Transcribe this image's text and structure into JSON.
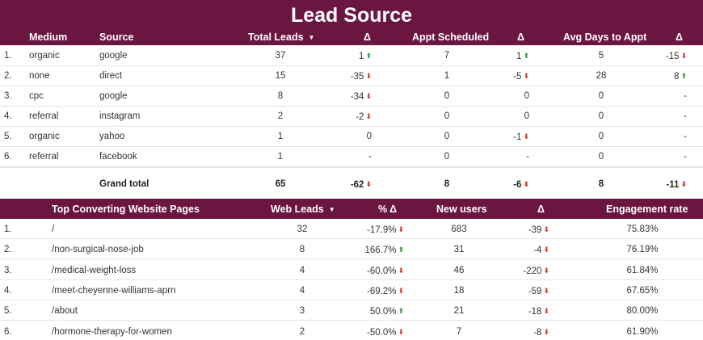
{
  "title": "Lead Source",
  "table1": {
    "headers": {
      "medium": "Medium",
      "source": "Source",
      "total_leads": "Total Leads",
      "delta1": "Δ",
      "appt": "Appt Scheduled",
      "delta2": "Δ",
      "avg_days": "Avg Days to Appt",
      "delta3": "Δ"
    },
    "rows": [
      {
        "n": "1.",
        "medium": "organic",
        "source": "google",
        "leads": "37",
        "d1": "1",
        "d1_dir": "up",
        "appt": "7",
        "d2": "1",
        "d2_dir": "up",
        "avg": "5",
        "d3": "-15",
        "d3_dir": "down"
      },
      {
        "n": "2.",
        "medium": "none",
        "source": "direct",
        "leads": "15",
        "d1": "-35",
        "d1_dir": "down",
        "appt": "1",
        "d2": "-5",
        "d2_dir": "down",
        "avg": "28",
        "d3": "8",
        "d3_dir": "up"
      },
      {
        "n": "3.",
        "medium": "cpc",
        "source": "google",
        "leads": "8",
        "d1": "-34",
        "d1_dir": "down",
        "appt": "0",
        "d2": "0",
        "d2_dir": "",
        "avg": "0",
        "d3": "-",
        "d3_dir": ""
      },
      {
        "n": "4.",
        "medium": "referral",
        "source": "instagram",
        "leads": "2",
        "d1": "-2",
        "d1_dir": "down",
        "appt": "0",
        "d2": "0",
        "d2_dir": "",
        "avg": "0",
        "d3": "-",
        "d3_dir": ""
      },
      {
        "n": "5.",
        "medium": "organic",
        "source": "yahoo",
        "leads": "1",
        "d1": "0",
        "d1_dir": "",
        "appt": "0",
        "d2": "-1",
        "d2_dir": "down",
        "avg": "0",
        "d3": "-",
        "d3_dir": ""
      },
      {
        "n": "6.",
        "medium": "referral",
        "source": "facebook",
        "leads": "1",
        "d1": "-",
        "d1_dir": "",
        "appt": "0",
        "d2": "-",
        "d2_dir": "",
        "avg": "0",
        "d3": "-",
        "d3_dir": ""
      }
    ],
    "total": {
      "label": "Grand total",
      "leads": "65",
      "d1": "-62",
      "appt": "8",
      "d2": "-6",
      "avg": "8",
      "d3": "-11"
    }
  },
  "table2": {
    "headers": {
      "page": "Top Converting Website Pages",
      "web_leads": "Web Leads",
      "pct_delta": "% Δ",
      "new_users": "New users",
      "delta": "Δ",
      "engagement": "Engagement rate"
    },
    "rows": [
      {
        "n": "1.",
        "page": "/",
        "leads": "32",
        "pct": "-17.9%",
        "pct_dir": "down",
        "users": "683",
        "d": "-39",
        "d_dir": "down",
        "eng": "75.83%"
      },
      {
        "n": "2.",
        "page": "/non-surgical-nose-job",
        "leads": "8",
        "pct": "166.7%",
        "pct_dir": "up",
        "users": "31",
        "d": "-4",
        "d_dir": "down",
        "eng": "76.19%"
      },
      {
        "n": "3.",
        "page": "/medical-weight-loss",
        "leads": "4",
        "pct": "-60.0%",
        "pct_dir": "down",
        "users": "46",
        "d": "-220",
        "d_dir": "down",
        "eng": "61.84%"
      },
      {
        "n": "4.",
        "page": "/meet-cheyenne-williams-aprn",
        "leads": "4",
        "pct": "-69.2%",
        "pct_dir": "down",
        "users": "18",
        "d": "-59",
        "d_dir": "down",
        "eng": "67.65%"
      },
      {
        "n": "5.",
        "page": "/about",
        "leads": "3",
        "pct": "50.0%",
        "pct_dir": "up",
        "users": "21",
        "d": "-18",
        "d_dir": "down",
        "eng": "80.00%"
      },
      {
        "n": "6.",
        "page": "/hormone-therapy-for-women",
        "leads": "2",
        "pct": "-50.0%",
        "pct_dir": "down",
        "users": "7",
        "d": "-8",
        "d_dir": "down",
        "eng": "61.90%"
      }
    ]
  },
  "colors": {
    "header_bg": "#6b1640",
    "up": "#1e9e3a",
    "down": "#d93025"
  }
}
